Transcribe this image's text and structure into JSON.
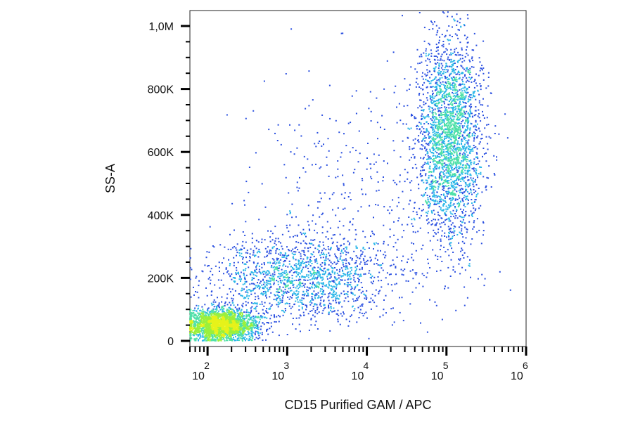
{
  "chart_data": {
    "type": "scatter",
    "subtype": "flow-cytometry-density-dot-plot",
    "title": "",
    "xlabel": "CD15 Purified GAM / APC",
    "ylabel": "SS-A",
    "x_scale": "log",
    "x_range": [
      60,
      1000000
    ],
    "y_scale": "linear",
    "y_range": [
      0,
      1000000
    ],
    "x_ticks": [
      {
        "value": 100,
        "base": "10",
        "exp": "2"
      },
      {
        "value": 1000,
        "base": "10",
        "exp": "3"
      },
      {
        "value": 10000,
        "base": "10",
        "exp": "4"
      },
      {
        "value": 100000,
        "base": "10",
        "exp": "5"
      },
      {
        "value": 1000000,
        "base": "10",
        "exp": "6"
      }
    ],
    "y_ticks": [
      {
        "value": 0,
        "label": "0"
      },
      {
        "value": 200000,
        "label": "200K"
      },
      {
        "value": 400000,
        "label": "400K"
      },
      {
        "value": 600000,
        "label": "600K"
      },
      {
        "value": 800000,
        "label": "800K"
      },
      {
        "value": 1000000,
        "label": "1,0M"
      }
    ],
    "grid": false,
    "legend": "none",
    "density_colors": [
      "#1a1ab4",
      "#2a4fe0",
      "#2ab7e8",
      "#4fe0a8",
      "#9af03c",
      "#e6f21a"
    ],
    "populations": [
      {
        "center_x": 150,
        "center_y": 50000,
        "x_log_spread": 0.22,
        "y_spread": 25000,
        "count": 2600
      },
      {
        "center_x": 1500,
        "center_y": 200000,
        "x_log_spread": 0.55,
        "y_spread": 65000,
        "count": 1500
      },
      {
        "center_x": 110000,
        "center_y": 640000,
        "x_log_spread": 0.2,
        "y_spread": 160000,
        "count": 2600
      },
      {
        "center_x": 8000,
        "center_y": 450000,
        "x_log_spread": 0.7,
        "y_spread": 180000,
        "count": 450
      }
    ]
  }
}
